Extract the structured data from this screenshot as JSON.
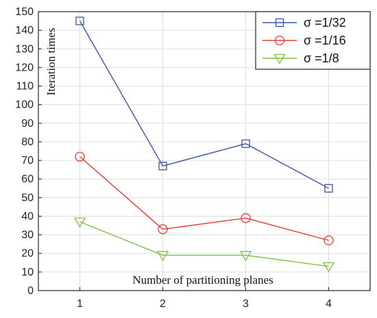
{
  "chart_data": {
    "type": "line",
    "xlabel": "Number of partitioning planes",
    "ylabel": "Iteration times",
    "x": [
      1,
      2,
      3,
      4
    ],
    "xlim": [
      0.5,
      4.5
    ],
    "xticks": [
      1,
      2,
      3,
      4
    ],
    "ylim": [
      0,
      150
    ],
    "yticks": [
      0,
      10,
      20,
      30,
      40,
      50,
      60,
      70,
      80,
      90,
      100,
      110,
      120,
      130,
      140,
      150
    ],
    "grid": true,
    "legend_position": "top-right",
    "series": [
      {
        "name": "σ =1/32",
        "values": [
          145,
          67,
          79,
          55
        ],
        "color": "#3a55a3",
        "marker": "square"
      },
      {
        "name": "σ =1/16",
        "values": [
          72,
          33,
          39,
          27
        ],
        "color": "#e53b32",
        "marker": "circle"
      },
      {
        "name": "σ =1/8",
        "values": [
          37,
          19,
          19,
          13
        ],
        "color": "#7dc242",
        "marker": "triangle-down"
      }
    ]
  }
}
